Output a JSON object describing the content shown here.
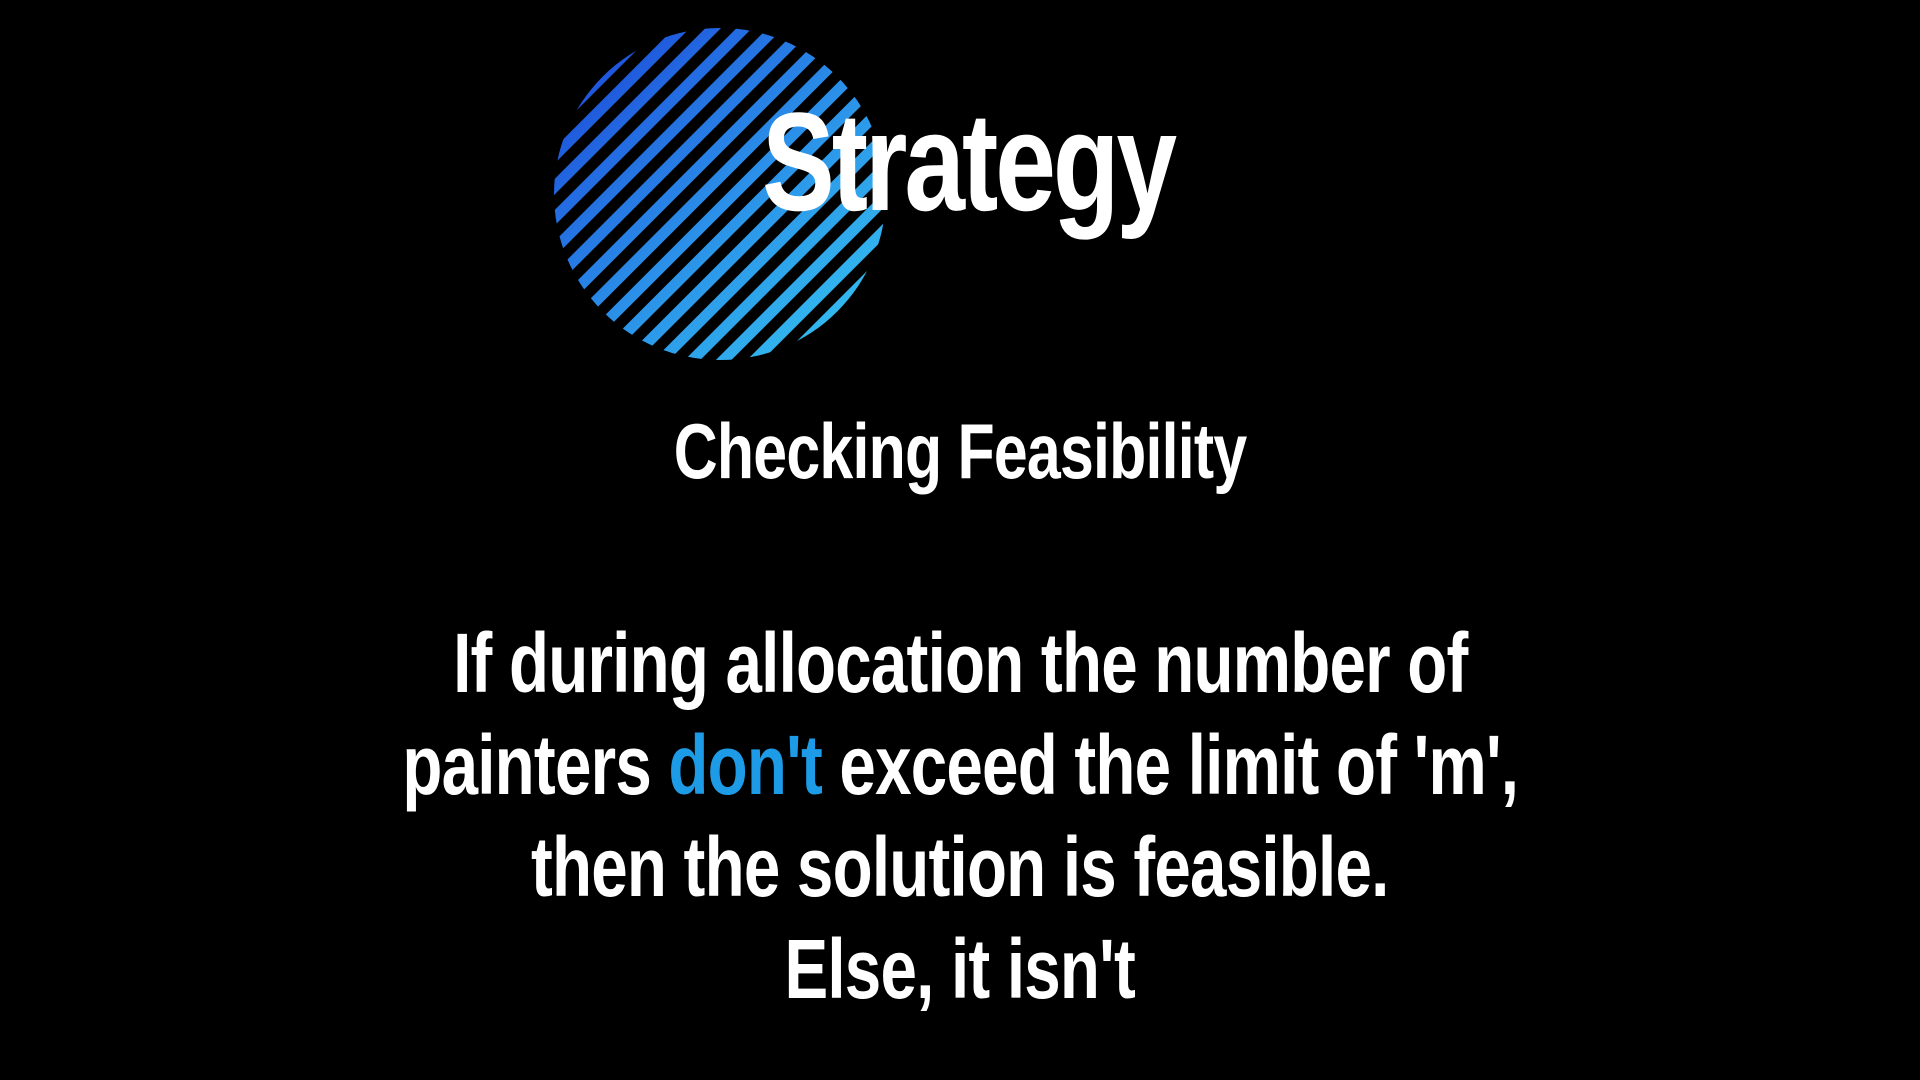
{
  "slide": {
    "title": "Strategy",
    "subtitle": "Checking Feasibility",
    "body": {
      "line1": "If during allocation the number of",
      "line2_before": "painters ",
      "line2_accent": "don't",
      "line2_after": " exceed the limit of 'm',",
      "line3": "then the solution is feasible.",
      "line4": "Else, it isn't"
    }
  },
  "colors": {
    "background": "#000000",
    "text": "#ffffff",
    "accent": "#1e9be6",
    "emblem_gradient_start": "#1a3fd8",
    "emblem_gradient_end": "#35c8f0"
  },
  "icons": {
    "emblem": "striped-circle-icon"
  }
}
